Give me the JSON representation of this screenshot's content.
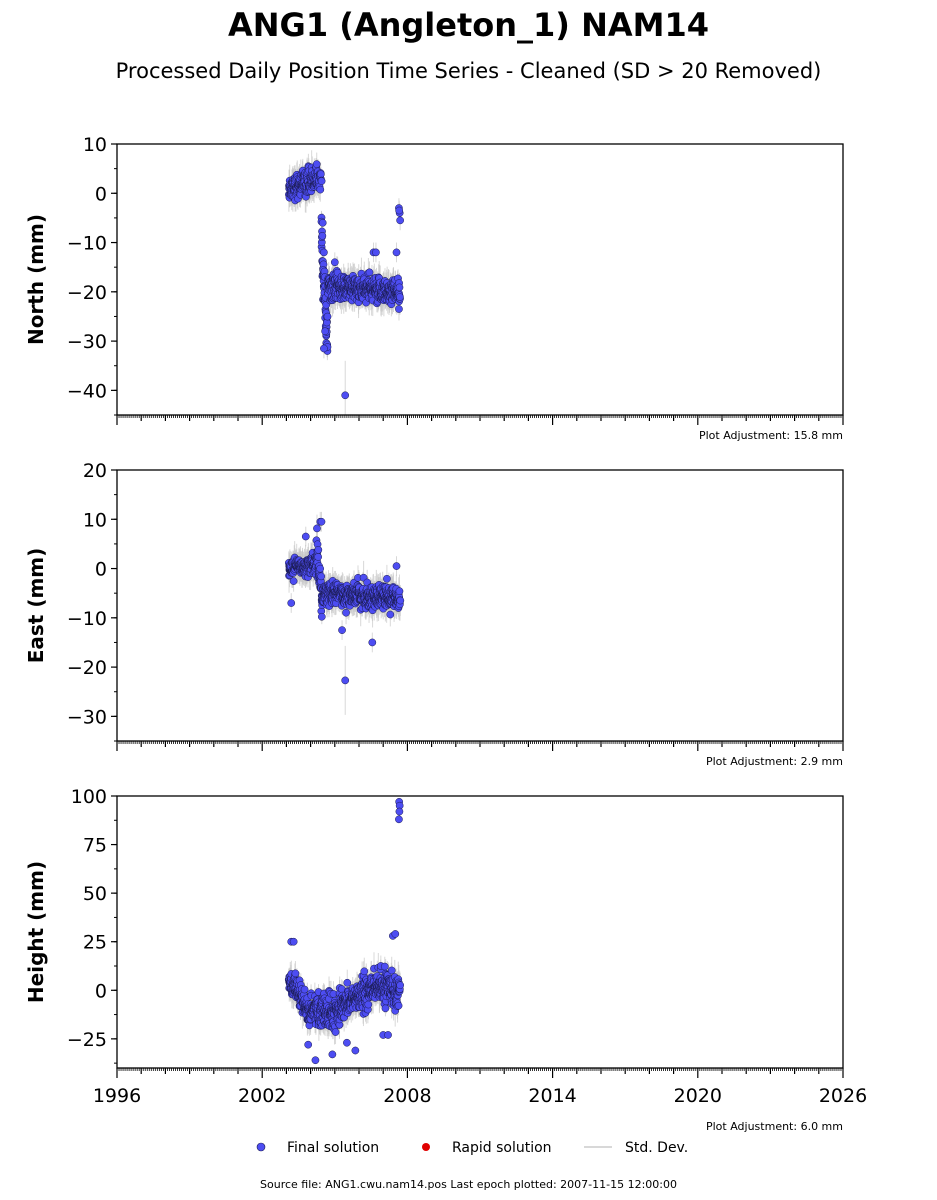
{
  "figure": {
    "title": "ANG1 (Angleton_1) NAM14",
    "subtitle": "Processed Daily Position Time Series - Cleaned (SD > 20 Removed)",
    "source_note": "Source file: ANG1.cwu.nam14.pos  Last epoch plotted: 2007-11-15 12:00:00"
  },
  "legend": {
    "placement": "bottom-center",
    "items": [
      {
        "label": "Final solution",
        "color": "#4d4df2",
        "kind": "marker"
      },
      {
        "label": "Rapid solution",
        "color": "#e00000",
        "kind": "marker"
      },
      {
        "label": "Std. Dev.",
        "color": "#cccccc",
        "kind": "line"
      }
    ]
  },
  "colors": {
    "final_marker": "#4d4df2",
    "marker_edge": "#1a1a4d",
    "error_bar": "#c8c8c8",
    "rapid_marker": "#e00000"
  },
  "chart_data": [
    {
      "type": "scatter",
      "panel": "north",
      "ylabel": "North (mm)",
      "xlim": [
        1996,
        2026
      ],
      "ylim": [
        -45,
        10
      ],
      "yticks": [
        -40,
        -30,
        -20,
        -10,
        0,
        10
      ],
      "ytick_labels": [
        "−40",
        "−30",
        "−20",
        "−10",
        "0",
        "10"
      ],
      "x_tick_labels_visible": false,
      "adjustment": "Plot Adjustment: 15.8 mm",
      "segments": [
        {
          "x0": 2003.1,
          "x1": 2004.25,
          "y0": 1.0,
          "y1": 3.0,
          "spread": 2.2,
          "err": 2.5,
          "n": 170
        },
        {
          "x0": 2004.25,
          "x1": 2004.45,
          "y0": 3.0,
          "y1": 3.0,
          "spread": 2.0,
          "err": 2.0,
          "n": 24
        },
        {
          "x0": 2004.45,
          "x1": 2004.7,
          "y0": -10,
          "y1": -30,
          "spread": 4.5,
          "err": 2.0,
          "n": 55
        },
        {
          "x0": 2004.7,
          "x1": 2007.7,
          "y0": -19,
          "y1": -20,
          "spread": 2.3,
          "err": 2.5,
          "n": 470
        }
      ],
      "points": [
        {
          "x": 2004.55,
          "y": -31.5
        },
        {
          "x": 2004.6,
          "y": -28
        },
        {
          "x": 2004.5,
          "y": -6
        },
        {
          "x": 2004.55,
          "y": -12
        },
        {
          "x": 2005.43,
          "y": -41,
          "err": 7
        },
        {
          "x": 2006.6,
          "y": -12
        },
        {
          "x": 2006.7,
          "y": -12
        },
        {
          "x": 2005.0,
          "y": -14
        },
        {
          "x": 2007.65,
          "y": -3
        },
        {
          "x": 2007.68,
          "y": -4
        },
        {
          "x": 2007.7,
          "y": -5.5
        },
        {
          "x": 2007.66,
          "y": -3.5
        },
        {
          "x": 2007.55,
          "y": -12
        }
      ]
    },
    {
      "type": "scatter",
      "panel": "east",
      "ylabel": "East (mm)",
      "xlim": [
        1996,
        2026
      ],
      "ylim": [
        -35,
        20
      ],
      "yticks": [
        -30,
        -20,
        -10,
        0,
        10,
        20
      ],
      "ytick_labels": [
        "−30",
        "−20",
        "−10",
        "0",
        "10",
        "20"
      ],
      "x_tick_labels_visible": false,
      "adjustment": "Plot Adjustment: 2.9 mm",
      "segments": [
        {
          "x0": 2003.1,
          "x1": 2004.25,
          "y0": 0.0,
          "y1": 1.0,
          "spread": 1.8,
          "err": 2.5,
          "n": 170
        },
        {
          "x0": 2004.25,
          "x1": 2004.5,
          "y0": 5,
          "y1": -8,
          "spread": 3.0,
          "err": 2.0,
          "n": 45
        },
        {
          "x0": 2004.5,
          "x1": 2007.7,
          "y0": -5,
          "y1": -6,
          "spread": 2.0,
          "err": 2.5,
          "n": 500
        }
      ],
      "points": [
        {
          "x": 2003.2,
          "y": -7
        },
        {
          "x": 2003.8,
          "y": 6.5
        },
        {
          "x": 2004.4,
          "y": 9.5
        },
        {
          "x": 2004.45,
          "y": 9.5
        },
        {
          "x": 2005.43,
          "y": -22.7,
          "err": 7
        },
        {
          "x": 2006.55,
          "y": -15
        },
        {
          "x": 2007.55,
          "y": 0.5
        },
        {
          "x": 2005.3,
          "y": -12.5
        }
      ]
    },
    {
      "type": "scatter",
      "panel": "height",
      "ylabel": "Height (mm)",
      "xlim": [
        1996,
        2026
      ],
      "ylim": [
        -40,
        100
      ],
      "yticks": [
        -25,
        0,
        25,
        50,
        75,
        100
      ],
      "ytick_labels": [
        "−25",
        "0",
        "25",
        "50",
        "75",
        "100"
      ],
      "xticks": [
        1996,
        2002,
        2008,
        2014,
        2020,
        2026
      ],
      "xtick_labels": [
        "1996",
        "2002",
        "2008",
        "2014",
        "2020",
        "2026"
      ],
      "x_tick_labels_visible": true,
      "adjustment": "Plot Adjustment: 6.0 mm",
      "segments": [
        {
          "x0": 2003.1,
          "x1": 2004.0,
          "y0": 5,
          "y1": -12,
          "spread": 6.0,
          "err": 6.0,
          "n": 150
        },
        {
          "x0": 2004.0,
          "x1": 2005.2,
          "y0": -10,
          "y1": -12,
          "spread": 7.0,
          "err": 6.0,
          "n": 200
        },
        {
          "x0": 2005.2,
          "x1": 2006.5,
          "y0": -8,
          "y1": 0,
          "spread": 7.0,
          "err": 6.0,
          "n": 220
        },
        {
          "x0": 2006.5,
          "x1": 2007.7,
          "y0": 2,
          "y1": 0,
          "spread": 7.0,
          "err": 6.5,
          "n": 200
        }
      ],
      "points": [
        {
          "x": 2003.2,
          "y": 25
        },
        {
          "x": 2003.3,
          "y": 25
        },
        {
          "x": 2003.9,
          "y": -28
        },
        {
          "x": 2004.2,
          "y": -36
        },
        {
          "x": 2004.9,
          "y": -33
        },
        {
          "x": 2005.5,
          "y": -27
        },
        {
          "x": 2005.85,
          "y": -31
        },
        {
          "x": 2007.4,
          "y": 28
        },
        {
          "x": 2007.5,
          "y": 29
        },
        {
          "x": 2007.0,
          "y": -23
        },
        {
          "x": 2007.2,
          "y": -23
        },
        {
          "x": 2007.66,
          "y": 97
        },
        {
          "x": 2007.68,
          "y": 95
        },
        {
          "x": 2007.67,
          "y": 92
        },
        {
          "x": 2007.65,
          "y": 88
        }
      ]
    }
  ]
}
